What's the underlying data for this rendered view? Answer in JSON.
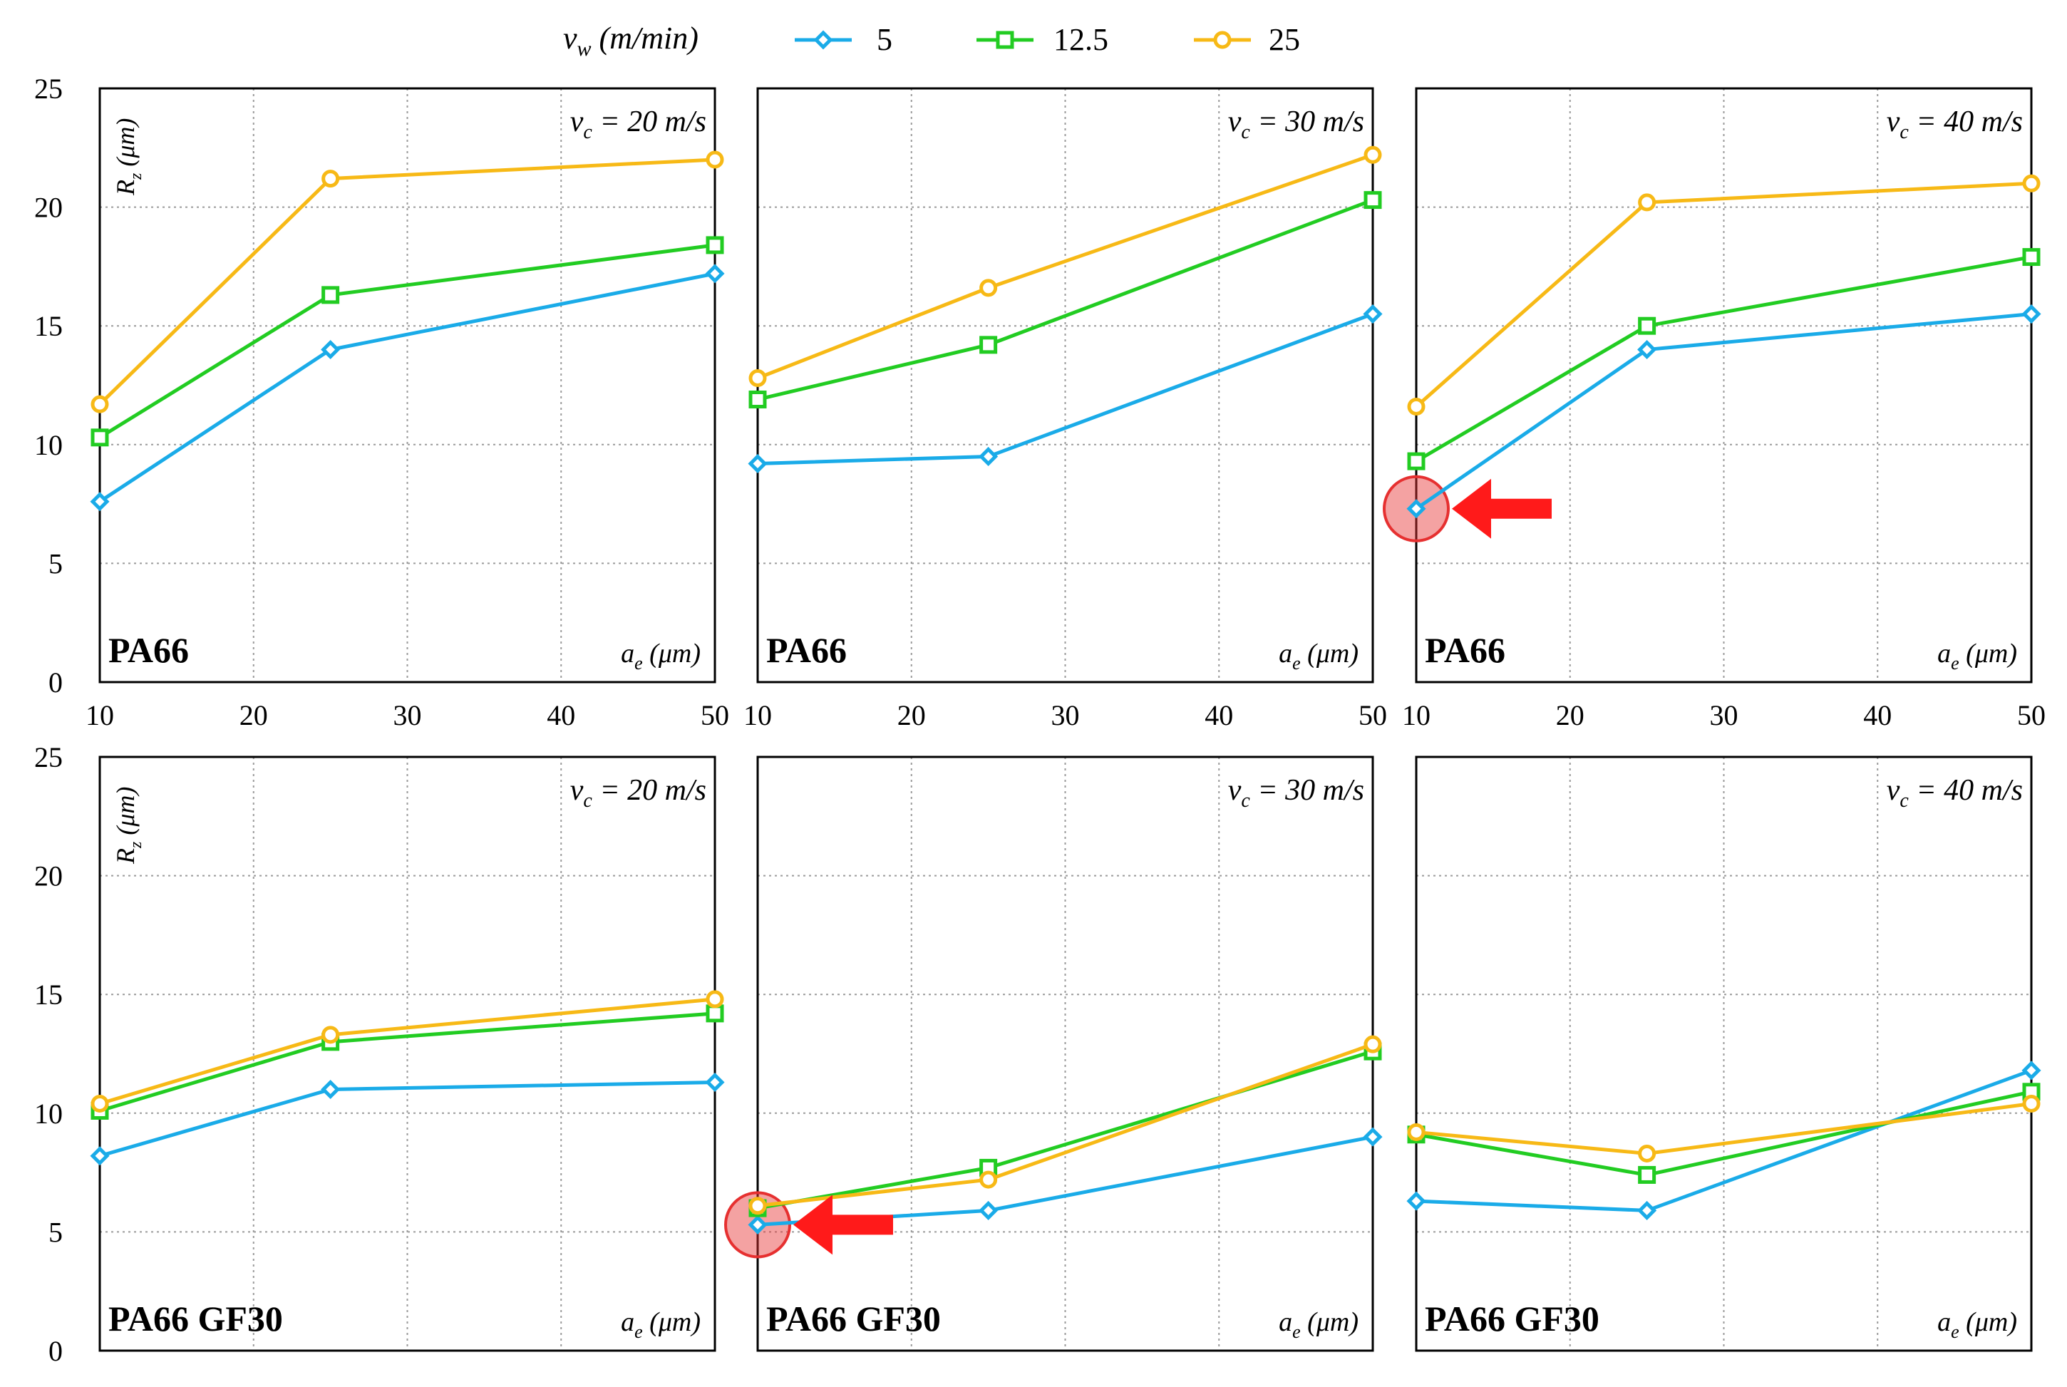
{
  "legend": {
    "title": "vw (m/min)",
    "title_base": "v",
    "title_sub": "w",
    "title_rest": " (m/min)"
  },
  "colors": {
    "v5": "#1aabe8",
    "v12_5": "#22cc22",
    "v25": "#f7b916",
    "grid": "#9a9a9a",
    "highlight": "#e63030"
  },
  "axis_text": {
    "y_label": "Rz (μm)",
    "y_label_base": "R",
    "y_label_sub": "z",
    "y_label_rest": " (μm)",
    "x_label": "ae (μm)",
    "x_label_base": "a",
    "x_label_sub": "e",
    "x_label_rest": " (μm)",
    "vc_base": "v",
    "vc_sub": "c"
  },
  "chart_data": [
    {
      "type": "line",
      "material": "PA66",
      "title": "vc = 20 m/s",
      "title_rest": " = 20 m/s",
      "x": [
        10,
        25,
        50
      ],
      "xlim": [
        10,
        50
      ],
      "ylim": [
        0,
        25
      ],
      "xticks": [
        "10",
        "20",
        "30",
        "40",
        "50"
      ],
      "yticks": [
        "0",
        "5",
        "10",
        "15",
        "20",
        "25"
      ],
      "series": [
        {
          "name": "5",
          "marker": "diamond",
          "values": [
            7.6,
            14.0,
            17.2
          ]
        },
        {
          "name": "12.5",
          "marker": "square",
          "values": [
            10.3,
            16.3,
            18.4
          ]
        },
        {
          "name": "25",
          "marker": "circle",
          "values": [
            11.7,
            21.2,
            22.0
          ]
        }
      ]
    },
    {
      "type": "line",
      "material": "PA66",
      "title": "vc = 30 m/s",
      "title_rest": " = 30 m/s",
      "x": [
        10,
        25,
        50
      ],
      "xlim": [
        10,
        50
      ],
      "ylim": [
        0,
        25
      ],
      "xticks": [
        "10",
        "20",
        "30",
        "40",
        "50"
      ],
      "series": [
        {
          "name": "5",
          "marker": "diamond",
          "values": [
            9.2,
            9.5,
            15.5
          ]
        },
        {
          "name": "12.5",
          "marker": "square",
          "values": [
            11.9,
            14.2,
            20.3
          ]
        },
        {
          "name": "25",
          "marker": "circle",
          "values": [
            12.8,
            16.6,
            22.2
          ]
        }
      ]
    },
    {
      "type": "line",
      "material": "PA66",
      "title": "vc = 40 m/s",
      "title_rest": " = 40 m/s",
      "x": [
        10,
        25,
        50
      ],
      "xlim": [
        10,
        50
      ],
      "ylim": [
        0,
        25
      ],
      "xticks": [
        "10",
        "20",
        "30",
        "40",
        "50"
      ],
      "highlight": {
        "series": "5",
        "index": 0
      },
      "series": [
        {
          "name": "5",
          "marker": "diamond",
          "values": [
            7.3,
            14.0,
            15.5
          ]
        },
        {
          "name": "12.5",
          "marker": "square",
          "values": [
            9.3,
            15.0,
            17.9
          ]
        },
        {
          "name": "25",
          "marker": "circle",
          "values": [
            11.6,
            20.2,
            21.0
          ]
        }
      ]
    },
    {
      "type": "line",
      "material": "PA66  GF30",
      "title": "vc = 20 m/s",
      "title_rest": " = 20 m/s",
      "x": [
        10,
        25,
        50
      ],
      "xlim": [
        10,
        50
      ],
      "ylim": [
        0,
        25
      ],
      "yticks": [
        "0",
        "5",
        "10",
        "15",
        "20",
        "25"
      ],
      "series": [
        {
          "name": "5",
          "marker": "diamond",
          "values": [
            8.2,
            11.0,
            11.3
          ]
        },
        {
          "name": "12.5",
          "marker": "square",
          "values": [
            10.1,
            13.0,
            14.2
          ]
        },
        {
          "name": "25",
          "marker": "circle",
          "values": [
            10.4,
            13.3,
            14.8
          ]
        }
      ]
    },
    {
      "type": "line",
      "material": "PA66  GF30",
      "title": "vc = 30 m/s",
      "title_rest": " = 30 m/s",
      "x": [
        10,
        25,
        50
      ],
      "xlim": [
        10,
        50
      ],
      "ylim": [
        0,
        25
      ],
      "highlight": {
        "series": "5",
        "index": 0
      },
      "series": [
        {
          "name": "5",
          "marker": "diamond",
          "values": [
            5.3,
            5.9,
            9.0
          ]
        },
        {
          "name": "12.5",
          "marker": "square",
          "values": [
            6.0,
            7.7,
            12.6
          ]
        },
        {
          "name": "25",
          "marker": "circle",
          "values": [
            6.1,
            7.2,
            12.9
          ]
        }
      ]
    },
    {
      "type": "line",
      "material": "PA66  GF30",
      "title": "vc = 40 m/s",
      "title_rest": " = 40 m/s",
      "x": [
        10,
        25,
        50
      ],
      "xlim": [
        10,
        50
      ],
      "ylim": [
        0,
        25
      ],
      "series": [
        {
          "name": "5",
          "marker": "diamond",
          "values": [
            6.3,
            5.9,
            11.8
          ]
        },
        {
          "name": "12.5",
          "marker": "square",
          "values": [
            9.1,
            7.4,
            10.9
          ]
        },
        {
          "name": "25",
          "marker": "circle",
          "values": [
            9.2,
            8.3,
            10.4
          ]
        }
      ]
    }
  ]
}
